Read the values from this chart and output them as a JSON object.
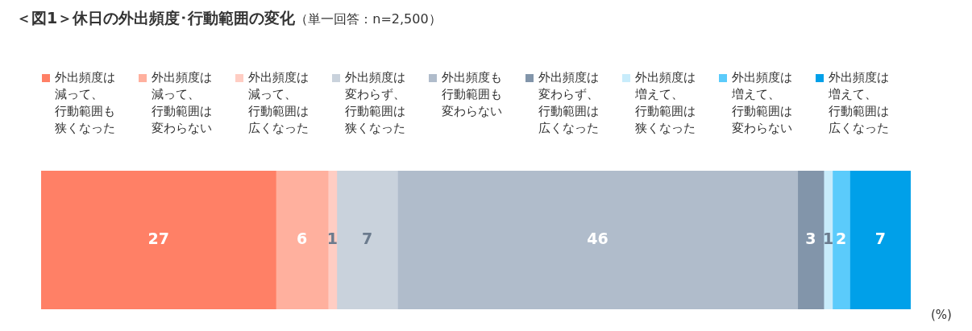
{
  "chart_data": {
    "type": "bar",
    "orientation": "horizontal",
    "stacked": true,
    "title": "＜図1＞休日の外出頻度･行動範囲の変化",
    "subtitle": "（単一回答：n=2,500）",
    "categories": [
      null
    ],
    "data_labels": true,
    "legend": "top",
    "grid": false,
    "tick_labels": false,
    "xlim": [
      0,
      100
    ],
    "annotations": [
      "(%)"
    ],
    "series": [
      {
        "name": "外出頻度は減って、行動範囲も狭くなった",
        "color": "#ff8066",
        "values": [
          27
        ]
      },
      {
        "name": "外出頻度は減って、行動範囲は変わらない",
        "color": "#ffb09e",
        "values": [
          6
        ]
      },
      {
        "name": "外出頻度は減って、行動範囲は広くなった",
        "color": "#ffcdc3",
        "values": [
          1
        ]
      },
      {
        "name": "外出頻度は変わらず、行動範囲は狭くなった",
        "color": "#c9d2dc",
        "values": [
          7
        ]
      },
      {
        "name": "外出頻度も行動範囲も変わらない",
        "color": "#b0bccb",
        "values": [
          46
        ]
      },
      {
        "name": "外出頻度は変わらず、行動範囲は広くなった",
        "color": "#8295aa",
        "values": [
          3
        ]
      },
      {
        "name": "外出頻度は増えて、行動範囲は狭くなった",
        "color": "#c8ecfb",
        "values": [
          1
        ]
      },
      {
        "name": "外出頻度は増えて、行動範囲は変わらない",
        "color": "#5bcbfb",
        "values": [
          2
        ]
      },
      {
        "name": "外出頻度は増えて、行動範囲は広くなった",
        "color": "#00a0e9",
        "values": [
          7
        ]
      }
    ]
  }
}
